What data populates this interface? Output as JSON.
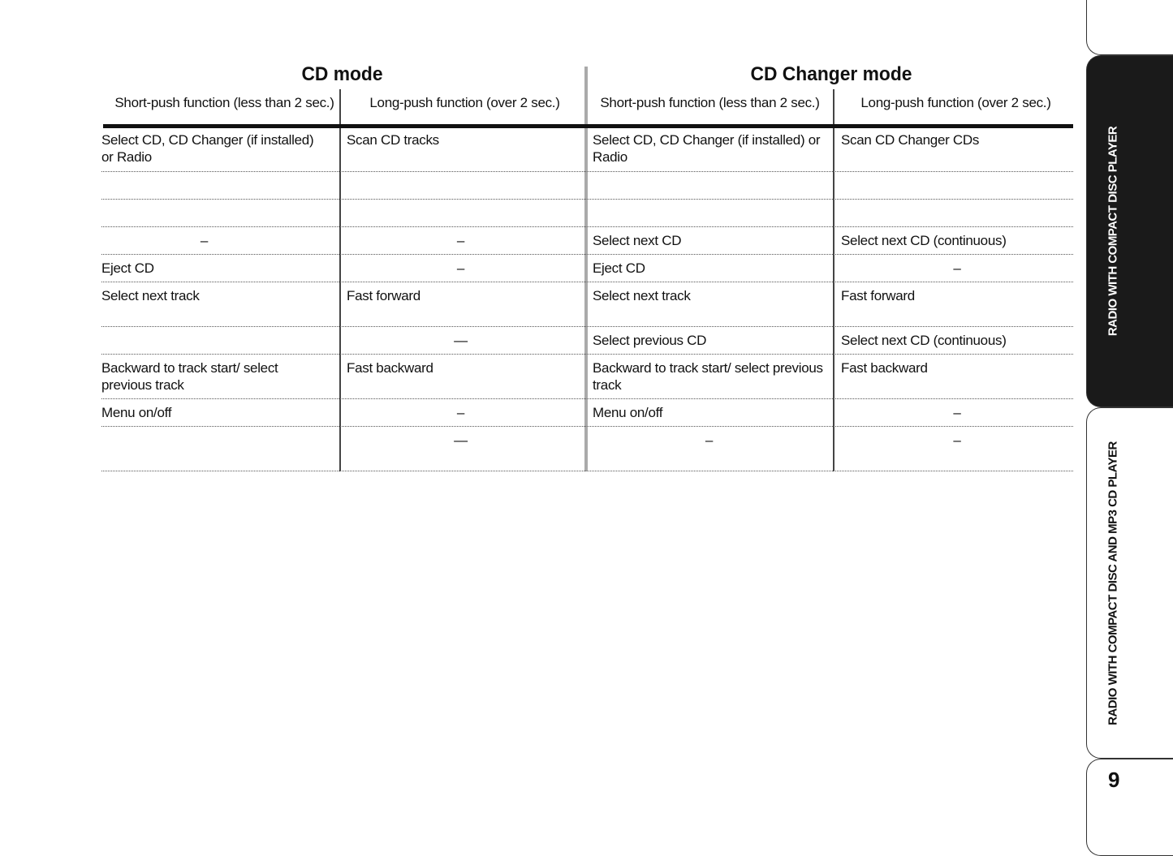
{
  "headers": {
    "cd_mode": "CD mode",
    "changer_mode": "CD Changer mode",
    "short": "Short-push function (less than 2 sec.)",
    "long": "Long-push function (over 2 sec.)"
  },
  "rows": [
    [
      "Select CD, CD Changer (if installed) or Radio",
      "Scan CD tracks",
      "Select CD, CD Changer (if installed) or Radio",
      "Scan CD Changer CDs"
    ],
    [
      "",
      "",
      "",
      ""
    ],
    [
      "",
      "",
      "",
      ""
    ],
    [
      "–",
      "–",
      "Select next CD",
      "Select next CD (continuous)"
    ],
    [
      "Eject CD",
      "–",
      "Eject CD",
      "–"
    ],
    [
      "Select next track",
      "Fast forward",
      "Select next track",
      "Fast forward"
    ],
    [
      "",
      "—",
      "Select previous CD",
      "Select next CD (continuous)"
    ],
    [
      "Backward to track start/ select previous track",
      "Fast backward",
      "Backward to track start/ select previous track",
      "Fast backward"
    ],
    [
      "Menu on/off",
      "–",
      "Menu on/off",
      "–"
    ],
    [
      "",
      "—",
      "–",
      "–"
    ]
  ],
  "side_tabs": {
    "active": "RADIO WITH COMPACT DISC PLAYER",
    "other": "RADIO WITH COMPACT DISC AND MP3 CD PLAYER",
    "page_number": "9"
  }
}
